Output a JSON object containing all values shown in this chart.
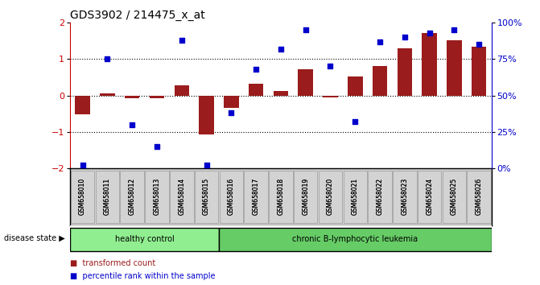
{
  "title": "GDS3902 / 214475_x_at",
  "samples": [
    "GSM658010",
    "GSM658011",
    "GSM658012",
    "GSM658013",
    "GSM658014",
    "GSM658015",
    "GSM658016",
    "GSM658017",
    "GSM658018",
    "GSM658019",
    "GSM658020",
    "GSM658021",
    "GSM658022",
    "GSM658023",
    "GSM658024",
    "GSM658025",
    "GSM658026"
  ],
  "bar_values": [
    -0.52,
    0.05,
    -0.08,
    -0.07,
    0.27,
    -1.08,
    -0.35,
    0.32,
    0.12,
    0.72,
    -0.05,
    0.52,
    0.8,
    1.3,
    1.72,
    1.52,
    1.35
  ],
  "dot_values": [
    2,
    75,
    30,
    15,
    88,
    2,
    38,
    68,
    82,
    95,
    70,
    32,
    87,
    90,
    93,
    95,
    85
  ],
  "bar_color": "#9B1C1C",
  "dot_color": "#0000CC",
  "ylim_left": [
    -2,
    2
  ],
  "ylim_right": [
    0,
    100
  ],
  "yticks_left": [
    -2,
    -1,
    0,
    1,
    2
  ],
  "yticks_right": [
    0,
    25,
    50,
    75,
    100
  ],
  "ytick_labels_right": [
    "0%",
    "25%",
    "50%",
    "75%",
    "100%"
  ],
  "healthy_count": 6,
  "healthy_label": "healthy control",
  "leukemia_label": "chronic B-lymphocytic leukemia",
  "healthy_color": "#90EE90",
  "leukemia_color": "#66CC66",
  "disease_state_label": "disease state",
  "legend_bar_label": "transformed count",
  "legend_dot_label": "percentile rank within the sample",
  "background_color": "#FFFFFF",
  "plot_bg_color": "#FFFFFF",
  "label_area_bg": "#D3D3D3",
  "label_area_border": "#999999",
  "hline_color": "black",
  "hline_style": "dotted",
  "bar_width": 0.6,
  "dot_size": 25,
  "title_fontsize": 10,
  "tick_fontsize": 8,
  "sample_fontsize": 5.5,
  "legend_fontsize": 7,
  "group_label_fontsize": 7
}
